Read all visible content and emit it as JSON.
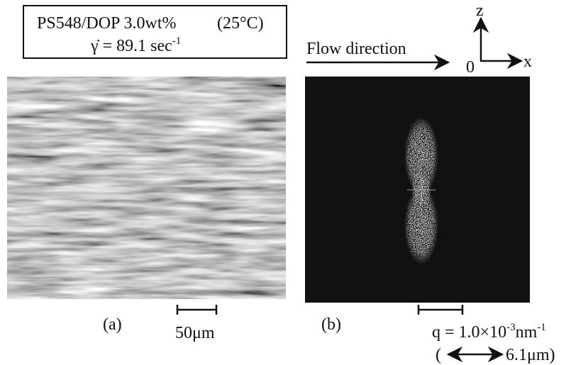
{
  "header": {
    "sample": "PS548/DOP 3.0wt%",
    "temperature": "(25°C)",
    "shear_rate": {
      "symbol": "γ̇",
      "text": " = 89.1 sec",
      "exponent": "-1"
    }
  },
  "flow": {
    "label": "Flow direction"
  },
  "axes": {
    "z": "z",
    "x": "x",
    "origin": "0"
  },
  "panels": [
    {
      "label": "(a)",
      "scale_bar": "50μm"
    },
    {
      "label": "(b)",
      "scale_bar": {
        "prefix": "q = 1.0×10",
        "exp1": "-3",
        "unit": "nm",
        "exp2": "-1"
      },
      "length": {
        "open": "(",
        "text": "6.1μm)"
      }
    }
  ]
}
